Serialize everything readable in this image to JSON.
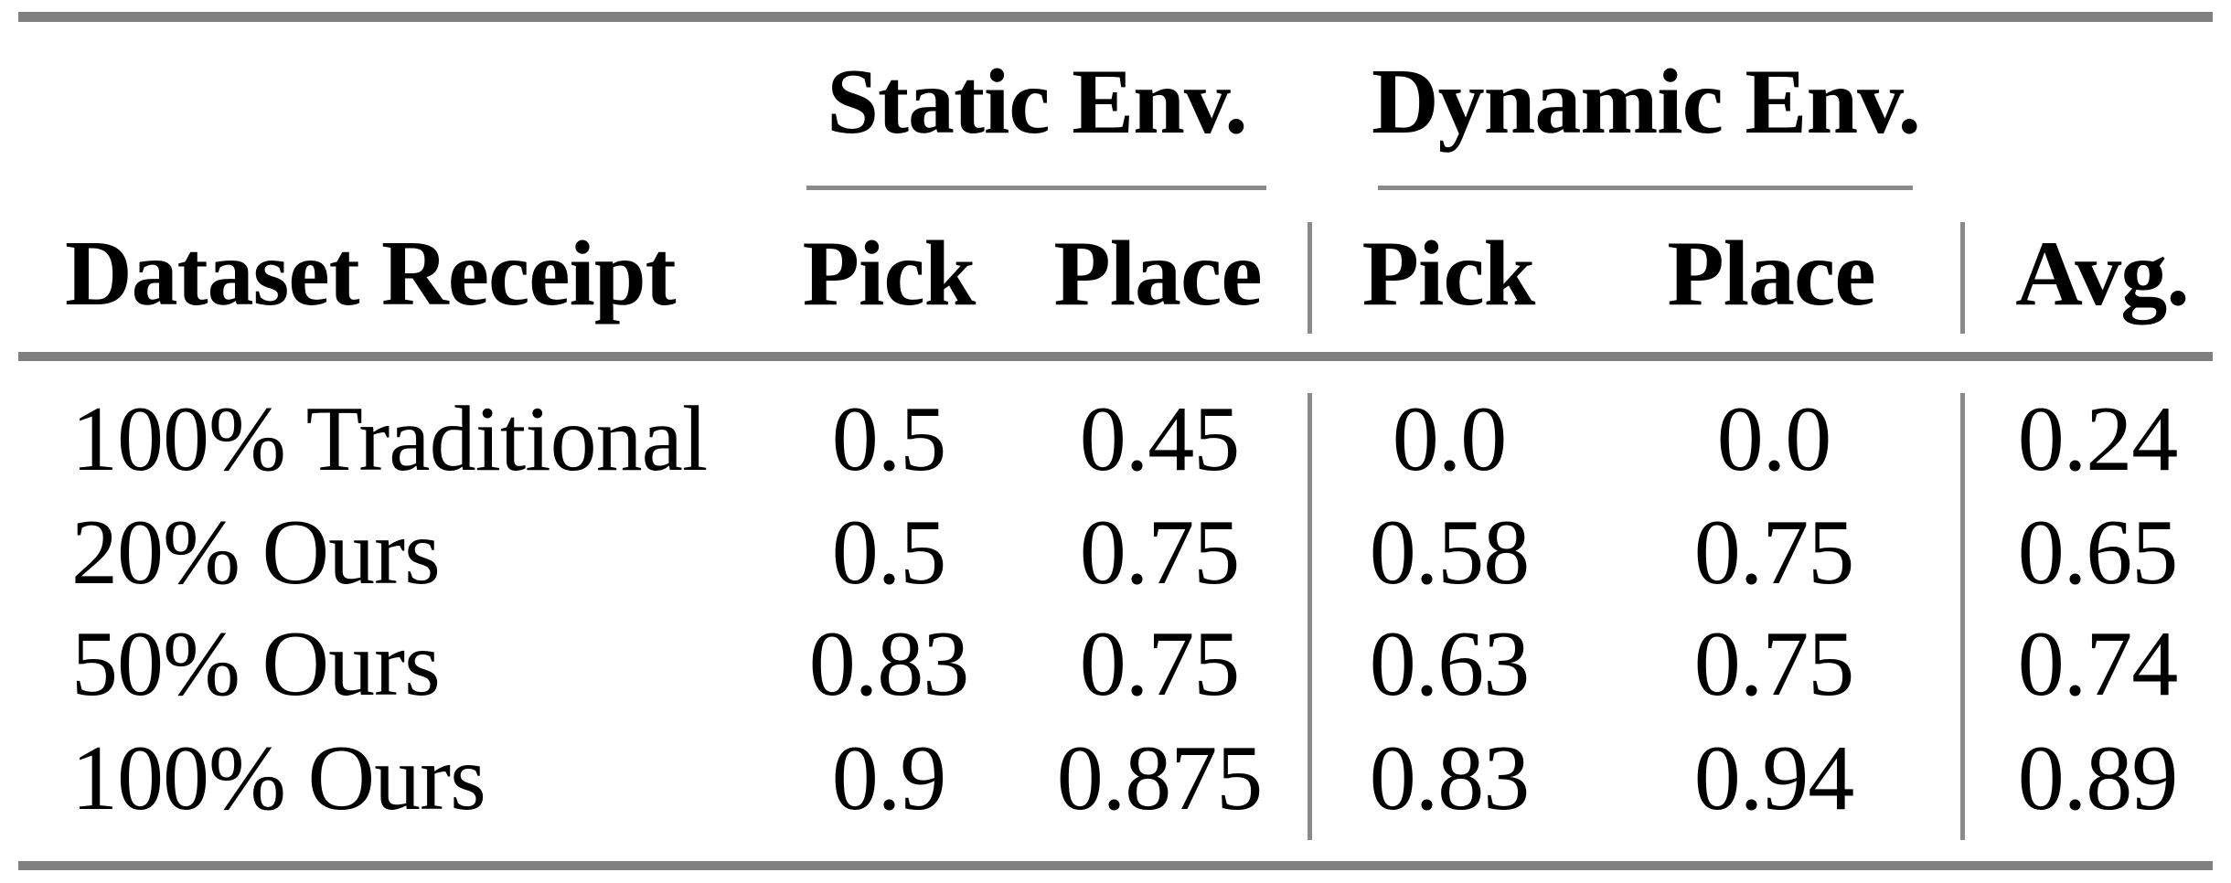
{
  "page": {
    "background": "#ffffff",
    "text_color": "#000000",
    "rule_color": "#808080"
  },
  "table": {
    "group_headers": {
      "static": "Static Env.",
      "dynamic": "Dynamic Env."
    },
    "header": {
      "dataset": "Dataset Receipt",
      "static_pick": "Pick",
      "static_place": "Place",
      "dynamic_pick": "Pick",
      "dynamic_place": "Place",
      "avg": "Avg."
    },
    "rows": [
      {
        "label": "100% Traditional",
        "static_pick": "0.5",
        "static_place": "0.45",
        "dynamic_pick": "0.0",
        "dynamic_place": "0.0",
        "avg": "0.24"
      },
      {
        "label": "20% Ours",
        "static_pick": "0.5",
        "static_place": "0.75",
        "dynamic_pick": "0.58",
        "dynamic_place": "0.75",
        "avg": "0.65"
      },
      {
        "label": "50% Ours",
        "static_pick": "0.83",
        "static_place": "0.75",
        "dynamic_pick": "0.63",
        "dynamic_place": "0.75",
        "avg": "0.74"
      },
      {
        "label": "100% Ours",
        "static_pick": "0.9",
        "static_place": "0.875",
        "dynamic_pick": "0.83",
        "dynamic_place": "0.94",
        "avg": "0.89"
      }
    ]
  }
}
